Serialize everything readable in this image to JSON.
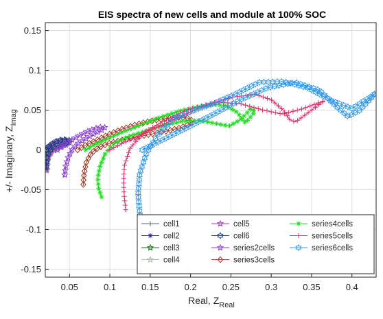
{
  "chart_data": {
    "type": "line",
    "title": "EIS spectra of new cells and module at 100% SOC",
    "xlabel": "Real, Z",
    "xlabel_sub": "Real",
    "ylabel": "+/- Imaginary, Z",
    "ylabel_sub": "Imag",
    "xlim": [
      0.02,
      0.43
    ],
    "ylim": [
      -0.16,
      0.16
    ],
    "xticks": [
      0.05,
      0.1,
      0.15,
      0.2,
      0.25,
      0.3,
      0.35,
      0.4
    ],
    "xtick_labels": [
      "0.05",
      "0.1",
      "0.15",
      "0.2",
      "0.25",
      "0.3",
      "0.35",
      "0.4"
    ],
    "yticks": [
      0.15,
      0.1,
      0.05,
      0,
      -0.05,
      -0.1,
      -0.15
    ],
    "ytick_labels": [
      "0.15",
      "0.1",
      "0.05",
      "0",
      "-0.05",
      "-0.1",
      "-0.15"
    ],
    "grid": true,
    "legend_position": "bottom-right",
    "legend_columns": 3,
    "series": [
      {
        "name": "cell1",
        "color": "#4d6a7f",
        "marker": "plus",
        "x": [
          0.021,
          0.024,
          0.03,
          0.036,
          0.042,
          0.046,
          0.049,
          0.047,
          0.041,
          0.033,
          0.027,
          0.023,
          0.0215,
          0.021
        ],
        "y": [
          0,
          0.004,
          0.008,
          0.011,
          0.012,
          0.011,
          0.009,
          0.007,
          0.005,
          0.002,
          -0.002,
          -0.008,
          -0.016,
          -0.026
        ]
      },
      {
        "name": "cell2",
        "color": "#1f1fd1",
        "marker": "asterisk",
        "x": [
          0.021,
          0.025,
          0.031,
          0.037,
          0.043,
          0.047,
          0.05,
          0.048,
          0.042,
          0.034,
          0.028,
          0.024,
          0.022,
          0.0215
        ],
        "y": [
          0.001,
          0.005,
          0.009,
          0.012,
          0.013,
          0.012,
          0.01,
          0.008,
          0.006,
          0.003,
          -0.002,
          -0.009,
          -0.017,
          -0.027
        ]
      },
      {
        "name": "cell3",
        "color": "#1c6b1c",
        "marker": "star",
        "x": [
          0.02,
          0.024,
          0.03,
          0.036,
          0.042,
          0.046,
          0.048,
          0.046,
          0.04,
          0.032,
          0.026,
          0.022,
          0.0205,
          0.02
        ],
        "y": [
          0,
          0.004,
          0.008,
          0.011,
          0.012,
          0.011,
          0.009,
          0.007,
          0.005,
          0.002,
          -0.002,
          -0.008,
          -0.015,
          -0.024
        ]
      },
      {
        "name": "cell4",
        "color": "#a9b9a9",
        "marker": "star",
        "x": [
          0.022,
          0.026,
          0.032,
          0.038,
          0.044,
          0.048,
          0.051,
          0.049,
          0.043,
          0.035,
          0.029,
          0.025,
          0.023,
          0.0225
        ],
        "y": [
          0.001,
          0.005,
          0.009,
          0.012,
          0.013,
          0.012,
          0.01,
          0.008,
          0.006,
          0.003,
          -0.001,
          -0.007,
          -0.015,
          -0.025
        ]
      },
      {
        "name": "cell5",
        "color": "#9b3fa8",
        "marker": "star",
        "x": [
          0.021,
          0.025,
          0.031,
          0.037,
          0.043,
          0.047,
          0.05,
          0.048,
          0.042,
          0.034,
          0.028,
          0.024,
          0.022,
          0.0215
        ],
        "y": [
          0,
          0.004,
          0.008,
          0.011,
          0.012,
          0.011,
          0.009,
          0.007,
          0.005,
          0.002,
          -0.002,
          -0.008,
          -0.016,
          -0.026
        ]
      },
      {
        "name": "cell6",
        "color": "#163a8a",
        "marker": "hexagram",
        "x": [
          0.021,
          0.025,
          0.03,
          0.036,
          0.042,
          0.047,
          0.05,
          0.049,
          0.044,
          0.037,
          0.03,
          0.025,
          0.0225,
          0.0215,
          0.021
        ],
        "y": [
          0,
          0.005,
          0.009,
          0.012,
          0.013,
          0.013,
          0.012,
          0.01,
          0.008,
          0.006,
          0.003,
          -0.001,
          -0.007,
          -0.014,
          -0.024
        ]
      },
      {
        "name": "series2cells",
        "color": "#8a3fd6",
        "marker": "star",
        "x": [
          0.035,
          0.042,
          0.052,
          0.062,
          0.072,
          0.082,
          0.09,
          0.094,
          0.09,
          0.08,
          0.07,
          0.06,
          0.053,
          0.048,
          0.045,
          0.044
        ],
        "y": [
          0.0,
          0.006,
          0.012,
          0.018,
          0.023,
          0.027,
          0.029,
          0.028,
          0.025,
          0.02,
          0.014,
          0.008,
          0.0,
          -0.01,
          -0.022,
          -0.034
        ]
      },
      {
        "name": "series3cells",
        "color": "#a0341f",
        "marker": "diamond",
        "x": [
          0.06,
          0.07,
          0.085,
          0.1,
          0.115,
          0.13,
          0.145,
          0.16,
          0.172,
          0.185,
          0.197,
          0.203,
          0.198,
          0.188,
          0.172,
          0.152,
          0.132,
          0.113,
          0.098,
          0.086,
          0.077,
          0.071,
          0.068,
          0.067
        ],
        "y": [
          0.0,
          0.006,
          0.013,
          0.02,
          0.026,
          0.031,
          0.035,
          0.038,
          0.04,
          0.041,
          0.04,
          0.036,
          0.032,
          0.028,
          0.024,
          0.02,
          0.016,
          0.012,
          0.008,
          0.003,
          -0.004,
          -0.015,
          -0.03,
          -0.045
        ]
      },
      {
        "name": "series4cells",
        "color": "#22dd22",
        "marker": "asterisk",
        "x": [
          0.07,
          0.08,
          0.095,
          0.115,
          0.14,
          0.165,
          0.19,
          0.215,
          0.232,
          0.245,
          0.258,
          0.268,
          0.28,
          0.275,
          0.262,
          0.248,
          0.232,
          0.212,
          0.19,
          0.168,
          0.145,
          0.123,
          0.105,
          0.094,
          0.088,
          0.085,
          0.086,
          0.09
        ],
        "y": [
          0.0,
          0.006,
          0.013,
          0.022,
          0.032,
          0.042,
          0.05,
          0.055,
          0.057,
          0.055,
          0.047,
          0.034,
          0.048,
          0.052,
          0.038,
          0.03,
          0.033,
          0.037,
          0.036,
          0.031,
          0.024,
          0.017,
          0.008,
          -0.005,
          -0.02,
          -0.035,
          -0.048,
          -0.06
        ]
      },
      {
        "name": "series5cells",
        "color": "#e0306a",
        "marker": "plus",
        "x": [
          0.1,
          0.115,
          0.135,
          0.16,
          0.19,
          0.22,
          0.25,
          0.28,
          0.3,
          0.315,
          0.323,
          0.33,
          0.35,
          0.366,
          0.34,
          0.314,
          0.29,
          0.262,
          0.232,
          0.2,
          0.17,
          0.142,
          0.125,
          0.118,
          0.117,
          0.118,
          0.12
        ],
        "y": [
          0.0,
          0.008,
          0.017,
          0.029,
          0.043,
          0.056,
          0.066,
          0.07,
          0.063,
          0.05,
          0.038,
          0.035,
          0.05,
          0.062,
          0.052,
          0.045,
          0.05,
          0.058,
          0.06,
          0.052,
          0.038,
          0.022,
          0.002,
          -0.02,
          -0.04,
          -0.06,
          -0.078
        ]
      },
      {
        "name": "series6cells",
        "color": "#3399ee",
        "marker": "hexagram",
        "x": [
          0.14,
          0.16,
          0.19,
          0.225,
          0.26,
          0.295,
          0.33,
          0.36,
          0.38,
          0.395,
          0.41,
          0.43,
          0.425,
          0.4,
          0.375,
          0.345,
          0.315,
          0.285,
          0.255,
          0.228,
          0.205,
          0.18,
          0.16,
          0.145,
          0.137,
          0.135,
          0.137,
          0.14
        ],
        "y": [
          0.0,
          0.01,
          0.025,
          0.043,
          0.062,
          0.078,
          0.085,
          0.075,
          0.055,
          0.042,
          0.05,
          0.072,
          0.068,
          0.052,
          0.062,
          0.078,
          0.086,
          0.085,
          0.07,
          0.058,
          0.05,
          0.04,
          0.02,
          -0.005,
          -0.03,
          -0.055,
          -0.08,
          -0.1
        ]
      }
    ]
  }
}
